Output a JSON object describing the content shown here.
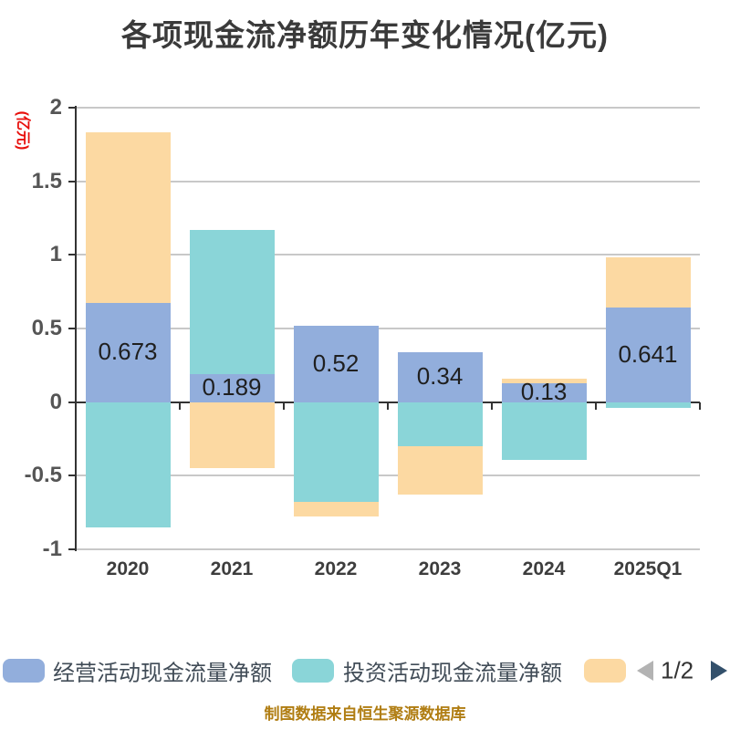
{
  "title": "各项现金流净额历年变化情况(亿元)",
  "y_axis_name": "(亿元)",
  "source_note": "制图数据来自恒生聚源数据库",
  "legend": {
    "item1_label": "经营活动现金流量净额",
    "item2_label": "投资活动现金流量净额",
    "item3_label": "",
    "pager_text": "1/2"
  },
  "colors": {
    "operating_blue": "#92aedc",
    "investing_teal": "#8ad5d8",
    "financing_orange": "#fcd9a2",
    "axis": "#333333",
    "grid": "#c8c8c8",
    "y_name_red": "#e8100c",
    "source_gold": "#b07d12",
    "pager_prev": "#b3b3b3",
    "pager_next": "#33506b"
  },
  "chart_data": {
    "type": "bar",
    "stacked": true,
    "title": "各项现金流净额历年变化情况(亿元)",
    "categories": [
      "2020",
      "2021",
      "2022",
      "2023",
      "2024",
      "2025Q1"
    ],
    "series": [
      {
        "key": "s1",
        "name": "经营活动现金流量净额",
        "color": "#92aedc",
        "values": [
          0.673,
          0.189,
          0.52,
          0.34,
          0.13,
          0.641
        ],
        "data_labels": [
          "0.673",
          "0.189",
          "0.52",
          "0.34",
          "0.13",
          "0.641"
        ]
      },
      {
        "key": "s2",
        "name": "投资活动现金流量净额",
        "color": "#8ad5d8",
        "values": [
          -0.85,
          0.98,
          -0.68,
          -0.3,
          -0.39,
          -0.04
        ]
      },
      {
        "key": "s3",
        "name": "",
        "color": "#fcd9a2",
        "values": [
          1.16,
          -0.45,
          -0.1,
          -0.33,
          0.03,
          0.34
        ]
      }
    ],
    "ylim": [
      -1,
      2
    ],
    "yticks": [
      2,
      1.5,
      1,
      0.5,
      0,
      -0.5,
      -1
    ],
    "ytick_labels": [
      "2",
      "1.5",
      "1",
      "0.5",
      "0",
      "-0.5",
      "-1"
    ],
    "grid": true,
    "legend_position": "bottom"
  }
}
